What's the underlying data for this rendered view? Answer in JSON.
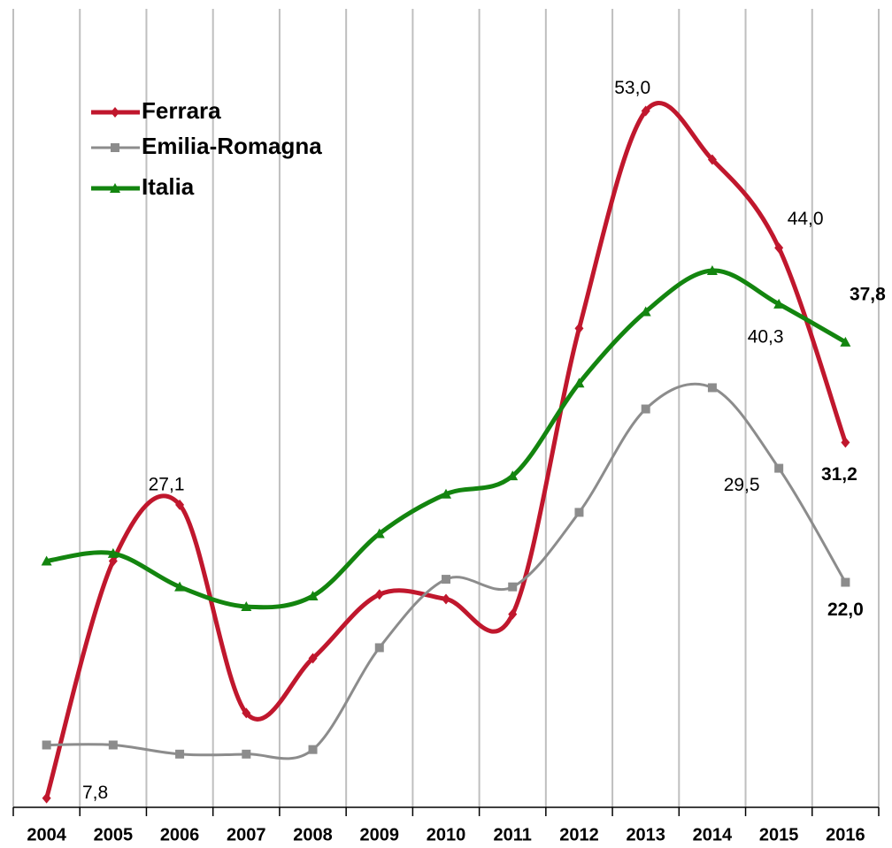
{
  "chart_data": {
    "type": "line",
    "categories": [
      "2004",
      "2005",
      "2006",
      "2007",
      "2008",
      "2009",
      "2010",
      "2011",
      "2012",
      "2013",
      "2014",
      "2015",
      "2016"
    ],
    "series": [
      {
        "name": "Ferrara",
        "color": "#c0172d",
        "marker": "diamond",
        "values": [
          7.8,
          23.4,
          27.1,
          13.4,
          17.0,
          21.2,
          20.9,
          19.9,
          38.7,
          53.0,
          49.8,
          44.0,
          31.2
        ],
        "value_labels": [
          "7,8",
          null,
          "27,1",
          null,
          null,
          null,
          null,
          null,
          null,
          "53,0",
          null,
          "44,0",
          "31,2"
        ]
      },
      {
        "name": "Emilia-Romagna",
        "color": "#8c8c8c",
        "marker": "square",
        "values": [
          11.3,
          11.3,
          10.7,
          10.7,
          11.0,
          17.7,
          22.2,
          21.7,
          26.6,
          33.4,
          34.8,
          29.5,
          22.0
        ],
        "value_labels": [
          null,
          null,
          null,
          null,
          null,
          null,
          null,
          null,
          null,
          null,
          null,
          "29,5",
          "22,0"
        ]
      },
      {
        "name": "Italia",
        "color": "#13850f",
        "marker": "triangle",
        "values": [
          23.4,
          23.9,
          21.7,
          20.4,
          21.1,
          25.2,
          27.8,
          29.0,
          35.1,
          39.8,
          42.5,
          40.3,
          37.8
        ],
        "value_labels": [
          null,
          null,
          null,
          null,
          null,
          null,
          null,
          null,
          null,
          null,
          null,
          "40,3",
          "37,8"
        ]
      }
    ],
    "ylim": [
      7.2,
      60.3
    ],
    "grid": "vertical",
    "legend": "upper left"
  }
}
